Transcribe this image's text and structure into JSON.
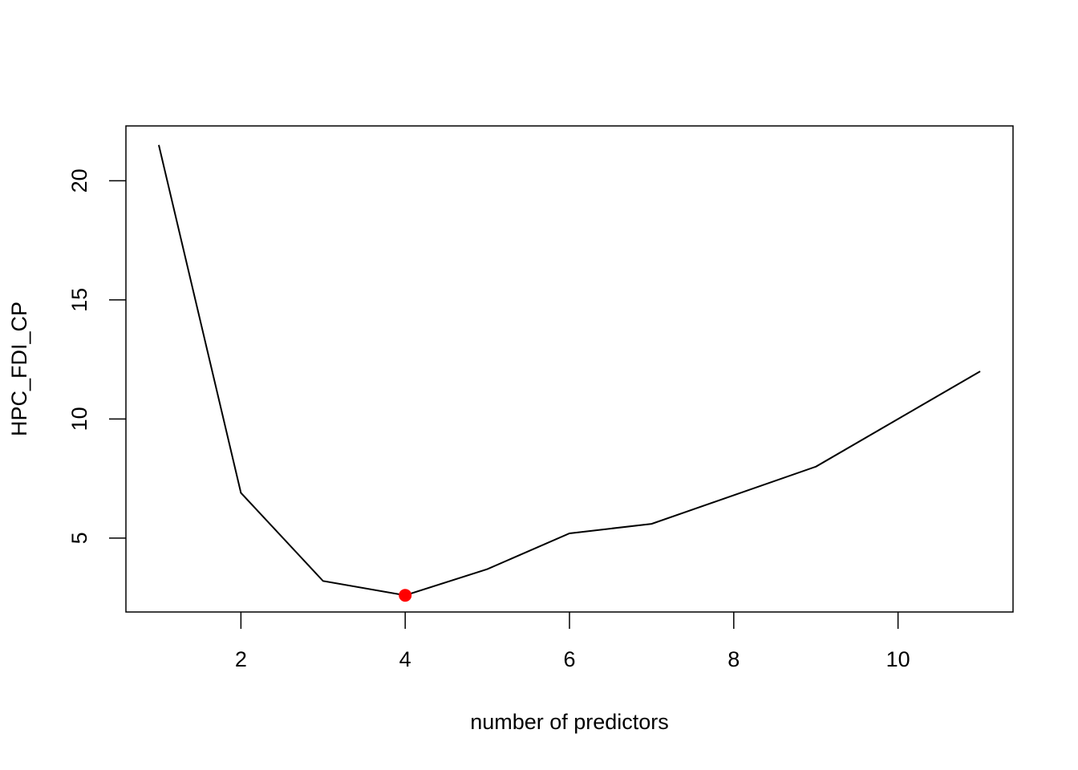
{
  "chart_data": {
    "type": "line",
    "x_label": "number of predictors",
    "y_label": "HPC_FDI_CP",
    "x": [
      1,
      2,
      3,
      4,
      5,
      6,
      7,
      8,
      9,
      10,
      11
    ],
    "values": [
      21.5,
      6.9,
      3.2,
      2.6,
      3.7,
      5.2,
      5.6,
      6.8,
      8.0,
      10.0,
      12.0
    ],
    "color": "#000000",
    "highlight": {
      "index": 3,
      "color": "#ff0000"
    },
    "xlim": [
      0.6,
      11.4
    ],
    "xticks": [
      2,
      4,
      6,
      8,
      10
    ],
    "ylim": [
      1.9,
      22.3
    ],
    "yticks": [
      5,
      10,
      15,
      20
    ],
    "grid": false
  }
}
